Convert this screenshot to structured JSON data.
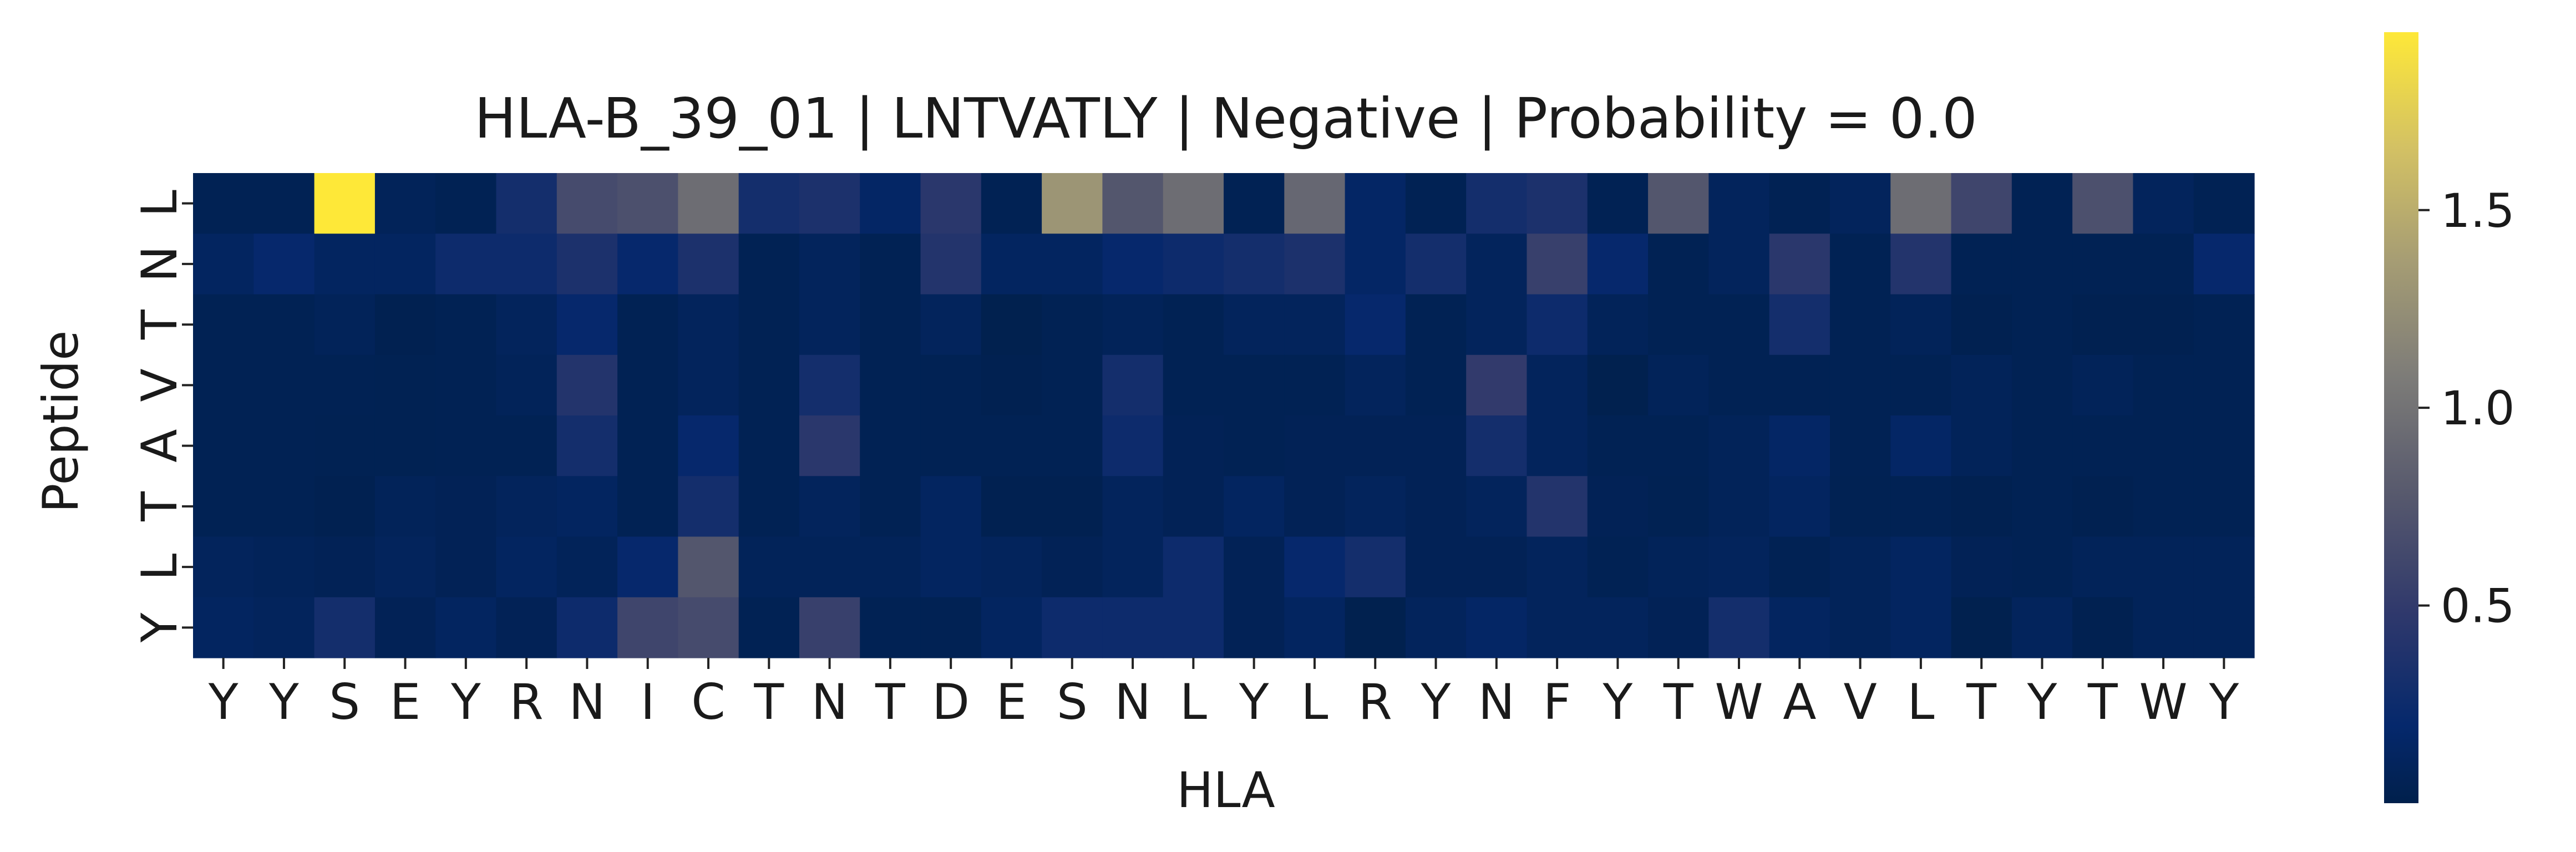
{
  "chart_data": {
    "type": "heatmap",
    "title": "HLA-B_39_01 | LNTVATLY | Negative | Probability = 0.0",
    "xlabel": "HLA",
    "ylabel": "Peptide",
    "x": [
      "Y",
      "Y",
      "S",
      "E",
      "Y",
      "R",
      "N",
      "I",
      "C",
      "T",
      "N",
      "T",
      "D",
      "E",
      "S",
      "N",
      "L",
      "Y",
      "L",
      "R",
      "Y",
      "N",
      "F",
      "Y",
      "T",
      "W",
      "A",
      "V",
      "L",
      "T",
      "Y",
      "T",
      "W",
      "Y"
    ],
    "y": [
      "L",
      "N",
      "T",
      "V",
      "A",
      "T",
      "L",
      "Y"
    ],
    "values": [
      [
        0.05,
        0.05,
        1.95,
        0.08,
        0.05,
        0.3,
        0.65,
        0.7,
        0.95,
        0.3,
        0.35,
        0.15,
        0.45,
        0.05,
        1.3,
        0.75,
        0.95,
        0.05,
        0.9,
        0.15,
        0.05,
        0.3,
        0.35,
        0.05,
        0.75,
        0.1,
        0.05,
        0.1,
        0.95,
        0.6,
        0.05,
        0.7,
        0.1,
        0.05
      ],
      [
        0.12,
        0.2,
        0.12,
        0.12,
        0.25,
        0.25,
        0.35,
        0.2,
        0.35,
        0.05,
        0.1,
        0.05,
        0.4,
        0.12,
        0.12,
        0.2,
        0.25,
        0.3,
        0.35,
        0.15,
        0.3,
        0.1,
        0.55,
        0.2,
        0.05,
        0.1,
        0.45,
        0.05,
        0.4,
        0.05,
        0.05,
        0.05,
        0.05,
        0.2
      ],
      [
        0.05,
        0.05,
        0.08,
        0.03,
        0.05,
        0.1,
        0.2,
        0.05,
        0.1,
        0.05,
        0.1,
        0.05,
        0.1,
        0.02,
        0.05,
        0.08,
        0.05,
        0.1,
        0.1,
        0.2,
        0.05,
        0.1,
        0.25,
        0.08,
        0.05,
        0.05,
        0.3,
        0.05,
        0.08,
        0.03,
        0.05,
        0.03,
        0.03,
        0.05
      ],
      [
        0.05,
        0.05,
        0.05,
        0.04,
        0.05,
        0.08,
        0.4,
        0.05,
        0.1,
        0.05,
        0.3,
        0.05,
        0.05,
        0.03,
        0.05,
        0.3,
        0.05,
        0.05,
        0.05,
        0.1,
        0.05,
        0.5,
        0.1,
        0.02,
        0.08,
        0.05,
        0.05,
        0.05,
        0.05,
        0.08,
        0.05,
        0.08,
        0.05,
        0.05
      ],
      [
        0.05,
        0.05,
        0.04,
        0.04,
        0.05,
        0.05,
        0.3,
        0.05,
        0.2,
        0.05,
        0.45,
        0.05,
        0.05,
        0.05,
        0.05,
        0.25,
        0.06,
        0.05,
        0.06,
        0.06,
        0.06,
        0.3,
        0.1,
        0.05,
        0.05,
        0.08,
        0.15,
        0.05,
        0.15,
        0.08,
        0.05,
        0.05,
        0.05,
        0.05
      ],
      [
        0.05,
        0.05,
        0.03,
        0.08,
        0.06,
        0.1,
        0.12,
        0.05,
        0.3,
        0.05,
        0.1,
        0.05,
        0.12,
        0.03,
        0.03,
        0.1,
        0.06,
        0.12,
        0.06,
        0.1,
        0.06,
        0.1,
        0.4,
        0.06,
        0.04,
        0.08,
        0.12,
        0.04,
        0.05,
        0.03,
        0.05,
        0.03,
        0.05,
        0.05
      ],
      [
        0.1,
        0.08,
        0.06,
        0.1,
        0.06,
        0.12,
        0.08,
        0.2,
        0.75,
        0.08,
        0.08,
        0.08,
        0.12,
        0.1,
        0.06,
        0.1,
        0.25,
        0.06,
        0.2,
        0.3,
        0.06,
        0.06,
        0.1,
        0.05,
        0.08,
        0.1,
        0.05,
        0.08,
        0.12,
        0.06,
        0.05,
        0.08,
        0.08,
        0.08
      ],
      [
        0.12,
        0.1,
        0.3,
        0.06,
        0.12,
        0.06,
        0.25,
        0.6,
        0.65,
        0.05,
        0.55,
        0.05,
        0.05,
        0.12,
        0.25,
        0.25,
        0.25,
        0.06,
        0.12,
        0.02,
        0.1,
        0.15,
        0.1,
        0.1,
        0.06,
        0.3,
        0.12,
        0.08,
        0.12,
        0.02,
        0.1,
        0.03,
        0.08,
        0.08
      ]
    ],
    "colorbar": {
      "colormap": "cividis",
      "vmin": 0.0,
      "vmax": 1.95,
      "ticks": [
        "0.5",
        "1.0",
        "1.5"
      ],
      "tick_values": [
        0.5,
        1.0,
        1.5
      ]
    }
  }
}
